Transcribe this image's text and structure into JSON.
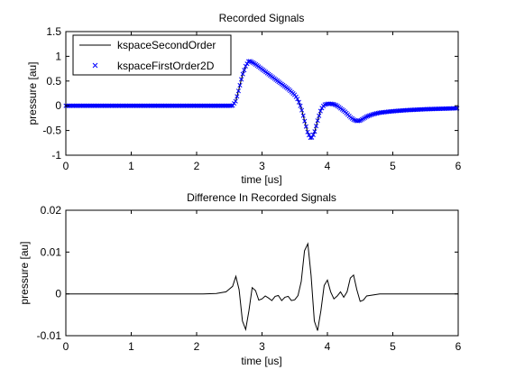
{
  "chart_data": [
    {
      "type": "line",
      "title": "Recorded Signals",
      "xlabel": "time [us]",
      "ylabel": "pressure [au]",
      "xlim": [
        0,
        6
      ],
      "ylim": [
        -1,
        1.5
      ],
      "xticks": [
        0,
        1,
        2,
        3,
        4,
        5,
        6
      ],
      "yticks": [
        -1,
        -0.5,
        0,
        0.5,
        1,
        1.5
      ],
      "ytick_labels": [
        "-1",
        "-0.5",
        "0",
        "0.5",
        "1",
        "1.5"
      ],
      "grid": false,
      "legend": "top-left",
      "series": [
        {
          "name": "kspaceSecondOrder",
          "style": "line",
          "color": "#000000",
          "x": [
            0,
            2.55,
            2.6,
            2.65,
            2.7,
            2.75,
            2.8,
            2.85,
            2.9,
            3.0,
            3.1,
            3.2,
            3.3,
            3.4,
            3.5,
            3.55,
            3.6,
            3.65,
            3.7,
            3.75,
            3.8,
            3.85,
            3.9,
            3.95,
            4.0,
            4.05,
            4.1,
            4.15,
            4.2,
            4.25,
            4.3,
            4.35,
            4.4,
            4.45,
            4.5,
            4.6,
            4.7,
            4.8,
            5.0,
            5.2,
            5.5,
            6.0
          ],
          "y": [
            0,
            0,
            0.1,
            0.35,
            0.62,
            0.8,
            0.91,
            0.88,
            0.84,
            0.74,
            0.64,
            0.54,
            0.44,
            0.34,
            0.22,
            0.12,
            -0.05,
            -0.3,
            -0.55,
            -0.67,
            -0.55,
            -0.3,
            -0.08,
            0.02,
            0.04,
            0.04,
            0.03,
            0.0,
            -0.05,
            -0.1,
            -0.16,
            -0.23,
            -0.28,
            -0.31,
            -0.3,
            -0.22,
            -0.17,
            -0.14,
            -0.11,
            -0.09,
            -0.07,
            -0.05
          ]
        },
        {
          "name": "kspaceFirstOrder2D",
          "style": "marker-x",
          "color": "#0000ff",
          "x": [
            0,
            2.55,
            2.6,
            2.65,
            2.7,
            2.75,
            2.8,
            2.85,
            2.9,
            3.0,
            3.1,
            3.2,
            3.3,
            3.4,
            3.5,
            3.55,
            3.6,
            3.65,
            3.7,
            3.75,
            3.8,
            3.85,
            3.9,
            3.95,
            4.0,
            4.05,
            4.1,
            4.15,
            4.2,
            4.25,
            4.3,
            4.35,
            4.4,
            4.45,
            4.5,
            4.6,
            4.7,
            4.8,
            5.0,
            5.2,
            5.5,
            6.0
          ],
          "y": [
            0,
            0,
            0.1,
            0.35,
            0.62,
            0.8,
            0.91,
            0.88,
            0.84,
            0.74,
            0.64,
            0.54,
            0.44,
            0.34,
            0.22,
            0.12,
            -0.05,
            -0.3,
            -0.55,
            -0.67,
            -0.55,
            -0.3,
            -0.08,
            0.02,
            0.04,
            0.04,
            0.03,
            0.0,
            -0.05,
            -0.1,
            -0.16,
            -0.23,
            -0.28,
            -0.31,
            -0.3,
            -0.22,
            -0.17,
            -0.14,
            -0.11,
            -0.09,
            -0.07,
            -0.05
          ]
        }
      ]
    },
    {
      "type": "line",
      "title": "Difference In Recorded Signals",
      "xlabel": "time [us]",
      "ylabel": "pressure [au]",
      "xlim": [
        0,
        6
      ],
      "ylim": [
        -0.01,
        0.02
      ],
      "xticks": [
        0,
        1,
        2,
        3,
        4,
        5,
        6
      ],
      "yticks": [
        -0.01,
        0,
        0.01,
        0.02
      ],
      "ytick_labels": [
        "-0.01",
        "0",
        "0.01",
        "0.02"
      ],
      "grid": false,
      "series": [
        {
          "style": "line",
          "color": "#000000",
          "x": [
            0,
            2.1,
            2.3,
            2.45,
            2.55,
            2.6,
            2.65,
            2.7,
            2.75,
            2.8,
            2.85,
            2.9,
            2.95,
            3.0,
            3.05,
            3.1,
            3.15,
            3.2,
            3.25,
            3.3,
            3.35,
            3.4,
            3.45,
            3.5,
            3.55,
            3.6,
            3.65,
            3.7,
            3.75,
            3.8,
            3.85,
            3.9,
            3.95,
            4.0,
            4.05,
            4.1,
            4.15,
            4.2,
            4.25,
            4.3,
            4.35,
            4.4,
            4.45,
            4.5,
            4.55,
            4.6,
            4.8,
            6.0
          ],
          "y": [
            0,
            0,
            0.0001,
            0.0005,
            0.0018,
            0.0042,
            0.001,
            -0.0065,
            -0.0085,
            -0.004,
            0.0015,
            0.0008,
            -0.0015,
            -0.0012,
            -0.0005,
            -0.001,
            -0.0016,
            -0.0006,
            -0.0004,
            -0.0016,
            -0.0008,
            -0.0006,
            -0.0016,
            -0.0014,
            -0.0004,
            0.003,
            0.0103,
            0.012,
            0.0044,
            -0.0065,
            -0.0088,
            -0.004,
            0.002,
            0.0033,
            0.0005,
            -0.0012,
            -0.0005,
            0.0005,
            -0.0008,
            0.0005,
            0.0038,
            0.0045,
            0.001,
            -0.0018,
            -0.0015,
            -0.0005,
            0,
            0
          ]
        }
      ]
    }
  ]
}
